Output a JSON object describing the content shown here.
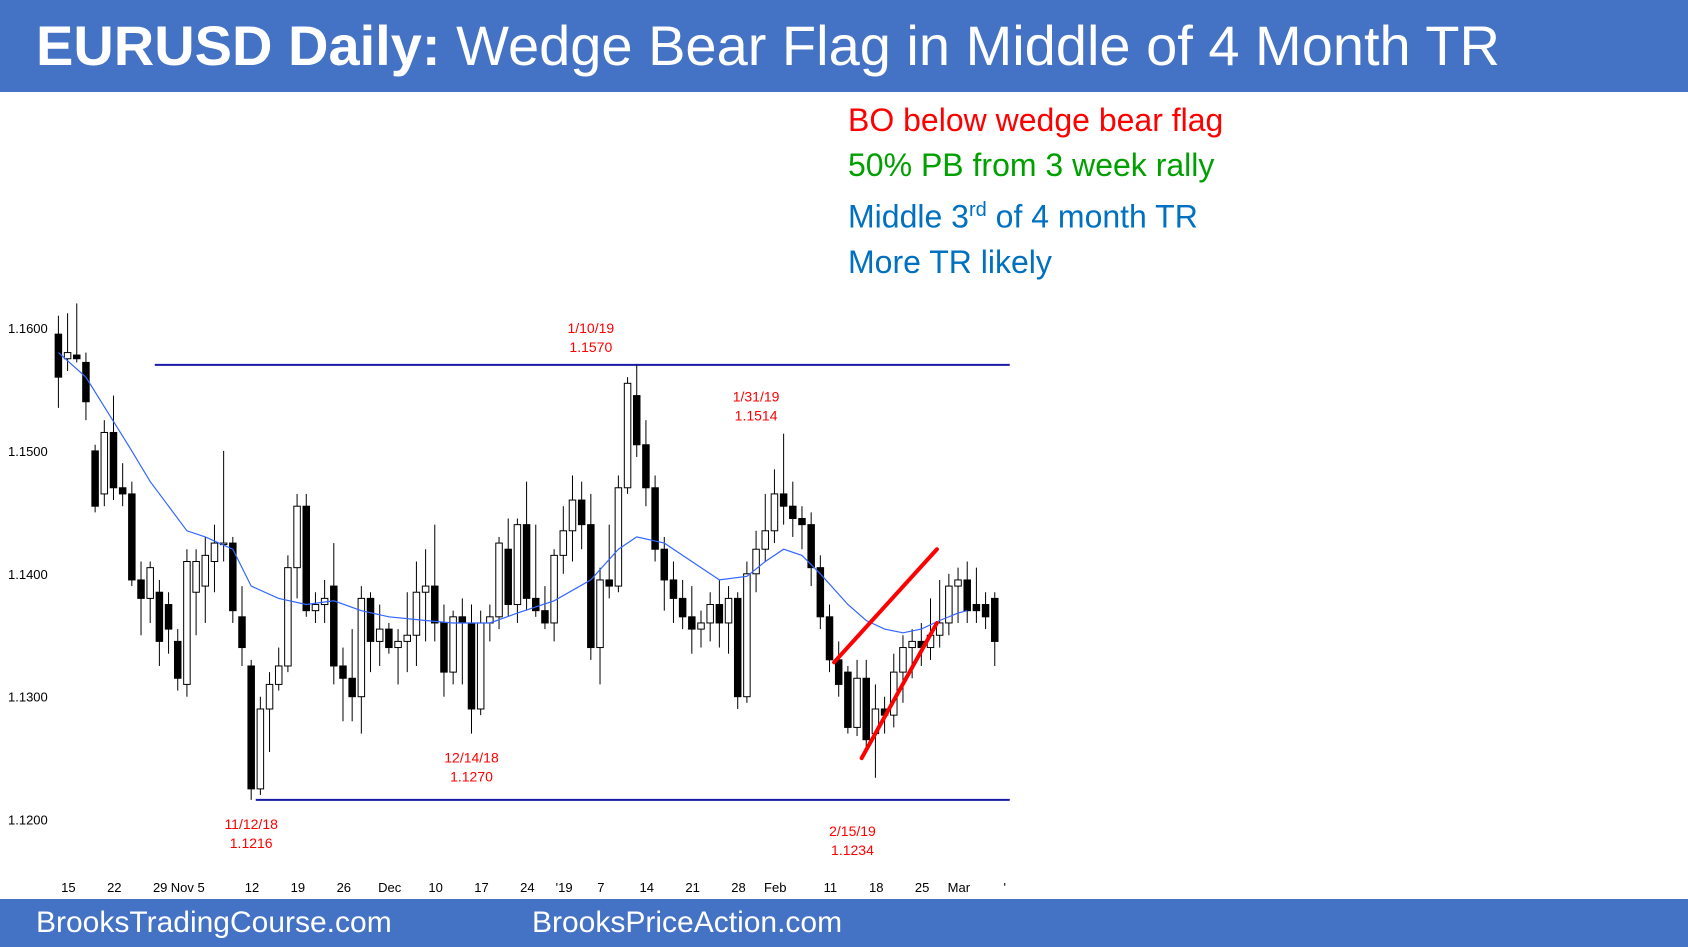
{
  "header": {
    "title_bold": "EURUSD Daily:",
    "title_rest": "Wedge Bear Flag in Middle of 4 Month TR",
    "bg_color": "#4472c4"
  },
  "notes": [
    {
      "text": "BO below wedge bear flag",
      "color": "#ff0000"
    },
    {
      "text": "50% PB from 3 week rally",
      "color": "#00a000"
    },
    {
      "text_before": "Middle 3",
      "sup": "rd",
      "text_after": " of 4 month TR",
      "color": "#0070c0"
    },
    {
      "text": "More TR likely",
      "color": "#0070c0"
    }
  ],
  "footer": {
    "left": "BrooksTradingCourse.com",
    "right": "BrooksPriceAction.com"
  },
  "chart_data": {
    "type": "candlestick",
    "ylim": [
      1.1175,
      1.164
    ],
    "yticks": [
      {
        "value": 1.16,
        "label": "1.1600"
      },
      {
        "value": 1.15,
        "label": "1.1500"
      },
      {
        "value": 1.14,
        "label": "1.1400"
      },
      {
        "value": 1.13,
        "label": "1.1300"
      },
      {
        "value": 1.12,
        "label": "1.1200"
      }
    ],
    "xticks": [
      {
        "i": 0,
        "label": "15"
      },
      {
        "i": 5,
        "label": "22"
      },
      {
        "i": 10,
        "label": "29"
      },
      {
        "i": 13,
        "label": "Nov 5"
      },
      {
        "i": 20,
        "label": "12"
      },
      {
        "i": 25,
        "label": "19"
      },
      {
        "i": 30,
        "label": "26"
      },
      {
        "i": 35,
        "label": "Dec"
      },
      {
        "i": 40,
        "label": "10"
      },
      {
        "i": 45,
        "label": "17"
      },
      {
        "i": 50,
        "label": "24"
      },
      {
        "i": 54,
        "label": "'19"
      },
      {
        "i": 58,
        "label": "7"
      },
      {
        "i": 63,
        "label": "14"
      },
      {
        "i": 68,
        "label": "21"
      },
      {
        "i": 73,
        "label": "28"
      },
      {
        "i": 77,
        "label": "Feb"
      },
      {
        "i": 83,
        "label": "11"
      },
      {
        "i": 88,
        "label": "18"
      },
      {
        "i": 93,
        "label": "25"
      },
      {
        "i": 97,
        "label": "Mar"
      },
      {
        "i": 102,
        "label": "'"
      }
    ],
    "bars": [
      [
        1.1595,
        1.161,
        1.1535,
        1.156
      ],
      [
        1.1575,
        1.1612,
        1.1565,
        1.158
      ],
      [
        1.1578,
        1.162,
        1.1572,
        1.1575
      ],
      [
        1.1572,
        1.158,
        1.1525,
        1.154
      ],
      [
        1.15,
        1.1505,
        1.145,
        1.1455
      ],
      [
        1.1465,
        1.1525,
        1.1455,
        1.1515
      ],
      [
        1.1515,
        1.1545,
        1.146,
        1.147
      ],
      [
        1.147,
        1.149,
        1.1455,
        1.1465
      ],
      [
        1.1465,
        1.1475,
        1.139,
        1.1395
      ],
      [
        1.1395,
        1.141,
        1.135,
        1.138
      ],
      [
        1.138,
        1.141,
        1.136,
        1.1405
      ],
      [
        1.1385,
        1.1395,
        1.1325,
        1.1345
      ],
      [
        1.1375,
        1.1385,
        1.1335,
        1.1355
      ],
      [
        1.1345,
        1.1355,
        1.1305,
        1.1315
      ],
      [
        1.131,
        1.142,
        1.13,
        1.141
      ],
      [
        1.1385,
        1.142,
        1.135,
        1.141
      ],
      [
        1.139,
        1.143,
        1.136,
        1.1415
      ],
      [
        1.141,
        1.144,
        1.1385,
        1.1425
      ],
      [
        1.1425,
        1.15,
        1.141,
        1.1425
      ],
      [
        1.1425,
        1.143,
        1.136,
        1.137
      ],
      [
        1.1365,
        1.139,
        1.1325,
        1.134
      ],
      [
        1.1325,
        1.133,
        1.1216,
        1.1225
      ],
      [
        1.1225,
        1.13,
        1.122,
        1.129
      ],
      [
        1.129,
        1.132,
        1.1255,
        1.131
      ],
      [
        1.131,
        1.134,
        1.1305,
        1.1325
      ],
      [
        1.1325,
        1.1415,
        1.132,
        1.1405
      ],
      [
        1.1405,
        1.1465,
        1.138,
        1.1455
      ],
      [
        1.1455,
        1.1465,
        1.1365,
        1.137
      ],
      [
        1.137,
        1.1385,
        1.136,
        1.1375
      ],
      [
        1.1375,
        1.1395,
        1.136,
        1.138
      ],
      [
        1.139,
        1.1425,
        1.131,
        1.1325
      ],
      [
        1.1325,
        1.134,
        1.128,
        1.1315
      ],
      [
        1.1315,
        1.1355,
        1.128,
        1.13
      ],
      [
        1.13,
        1.139,
        1.127,
        1.138
      ],
      [
        1.138,
        1.1385,
        1.132,
        1.1345
      ],
      [
        1.1345,
        1.1375,
        1.1325,
        1.1355
      ],
      [
        1.1355,
        1.136,
        1.1335,
        1.134
      ],
      [
        1.134,
        1.1355,
        1.131,
        1.1345
      ],
      [
        1.1345,
        1.1385,
        1.132,
        1.135
      ],
      [
        1.135,
        1.141,
        1.1325,
        1.1385
      ],
      [
        1.1385,
        1.142,
        1.1345,
        1.139
      ],
      [
        1.139,
        1.144,
        1.1345,
        1.136
      ],
      [
        1.136,
        1.1375,
        1.13,
        1.132
      ],
      [
        1.132,
        1.137,
        1.131,
        1.1365
      ],
      [
        1.1365,
        1.138,
        1.131,
        1.136
      ],
      [
        1.136,
        1.1375,
        1.127,
        1.129
      ],
      [
        1.129,
        1.137,
        1.1285,
        1.136
      ],
      [
        1.136,
        1.1375,
        1.1345,
        1.1365
      ],
      [
        1.1365,
        1.143,
        1.1355,
        1.1425
      ],
      [
        1.142,
        1.1445,
        1.1365,
        1.1375
      ],
      [
        1.1375,
        1.1445,
        1.136,
        1.144
      ],
      [
        1.144,
        1.1475,
        1.137,
        1.138
      ],
      [
        1.138,
        1.144,
        1.1365,
        1.137
      ],
      [
        1.137,
        1.139,
        1.1355,
        1.136
      ],
      [
        1.136,
        1.142,
        1.1345,
        1.1415
      ],
      [
        1.1415,
        1.1455,
        1.14,
        1.1435
      ],
      [
        1.1435,
        1.148,
        1.141,
        1.146
      ],
      [
        1.146,
        1.1475,
        1.142,
        1.144
      ],
      [
        1.144,
        1.1465,
        1.133,
        1.134
      ],
      [
        1.134,
        1.1405,
        1.131,
        1.1395
      ],
      [
        1.1395,
        1.144,
        1.138,
        1.139
      ],
      [
        1.139,
        1.148,
        1.1385,
        1.147
      ],
      [
        1.147,
        1.156,
        1.1465,
        1.1555
      ],
      [
        1.1545,
        1.157,
        1.1495,
        1.1505
      ],
      [
        1.1505,
        1.1525,
        1.1455,
        1.147
      ],
      [
        1.147,
        1.148,
        1.141,
        1.142
      ],
      [
        1.142,
        1.143,
        1.137,
        1.1395
      ],
      [
        1.1395,
        1.141,
        1.136,
        1.138
      ],
      [
        1.138,
        1.1395,
        1.1355,
        1.1365
      ],
      [
        1.1365,
        1.139,
        1.1335,
        1.1355
      ],
      [
        1.1355,
        1.137,
        1.134,
        1.136
      ],
      [
        1.136,
        1.1385,
        1.1345,
        1.1375
      ],
      [
        1.1375,
        1.1395,
        1.134,
        1.136
      ],
      [
        1.136,
        1.139,
        1.1335,
        1.138
      ],
      [
        1.138,
        1.1385,
        1.129,
        1.13
      ],
      [
        1.13,
        1.141,
        1.1295,
        1.14
      ],
      [
        1.14,
        1.1435,
        1.1385,
        1.142
      ],
      [
        1.142,
        1.1465,
        1.141,
        1.1435
      ],
      [
        1.1435,
        1.1485,
        1.1425,
        1.1465
      ],
      [
        1.1465,
        1.1514,
        1.144,
        1.1455
      ],
      [
        1.1455,
        1.1475,
        1.143,
        1.1445
      ],
      [
        1.1445,
        1.1455,
        1.142,
        1.144
      ],
      [
        1.144,
        1.145,
        1.139,
        1.1405
      ],
      [
        1.1405,
        1.1415,
        1.1355,
        1.1365
      ],
      [
        1.1365,
        1.1375,
        1.132,
        1.133
      ],
      [
        1.133,
        1.1345,
        1.13,
        1.131
      ],
      [
        1.132,
        1.1325,
        1.127,
        1.1275
      ],
      [
        1.1275,
        1.133,
        1.1268,
        1.1315
      ],
      [
        1.1315,
        1.133,
        1.1255,
        1.1265
      ],
      [
        1.127,
        1.131,
        1.1234,
        1.129
      ],
      [
        1.129,
        1.13,
        1.127,
        1.1285
      ],
      [
        1.1285,
        1.1335,
        1.1275,
        1.132
      ],
      [
        1.132,
        1.135,
        1.1295,
        1.134
      ],
      [
        1.134,
        1.1355,
        1.1315,
        1.1345
      ],
      [
        1.1345,
        1.136,
        1.1325,
        1.134
      ],
      [
        1.134,
        1.138,
        1.133,
        1.135
      ],
      [
        1.135,
        1.1395,
        1.134,
        1.136
      ],
      [
        1.136,
        1.14,
        1.135,
        1.139
      ],
      [
        1.139,
        1.1405,
        1.136,
        1.1395
      ],
      [
        1.1395,
        1.141,
        1.136,
        1.137
      ],
      [
        1.1375,
        1.1405,
        1.136,
        1.137
      ],
      [
        1.1375,
        1.1385,
        1.1355,
        1.1365
      ],
      [
        1.138,
        1.1385,
        1.1325,
        1.1345
      ]
    ],
    "ma20": [
      [
        0,
        1.158
      ],
      [
        3,
        1.156
      ],
      [
        8,
        1.15
      ],
      [
        10,
        1.1475
      ],
      [
        12,
        1.1455
      ],
      [
        14,
        1.1435
      ],
      [
        16,
        1.143
      ],
      [
        19,
        1.142
      ],
      [
        21,
        1.139
      ],
      [
        24,
        1.138
      ],
      [
        27,
        1.1375
      ],
      [
        30,
        1.1378
      ],
      [
        33,
        1.137
      ],
      [
        36,
        1.1365
      ],
      [
        40,
        1.1362
      ],
      [
        43,
        1.136
      ],
      [
        47,
        1.136
      ],
      [
        50,
        1.1368
      ],
      [
        54,
        1.1378
      ],
      [
        58,
        1.1395
      ],
      [
        61,
        1.142
      ],
      [
        63,
        1.143
      ],
      [
        66,
        1.1425
      ],
      [
        69,
        1.141
      ],
      [
        72,
        1.1395
      ],
      [
        75,
        1.1398
      ],
      [
        77,
        1.141
      ],
      [
        79,
        1.142
      ],
      [
        81,
        1.1415
      ],
      [
        83,
        1.14
      ],
      [
        86,
        1.1375
      ],
      [
        88,
        1.1362
      ],
      [
        90,
        1.1355
      ],
      [
        92,
        1.1352
      ],
      [
        94,
        1.1355
      ],
      [
        96,
        1.1362
      ],
      [
        98,
        1.1368
      ],
      [
        99,
        1.137
      ]
    ],
    "ma_color": "#3366ff",
    "hlines": [
      {
        "value": 1.157,
        "from_i": 10.5,
        "to_i": 102,
        "color": "#1a1aa6"
      },
      {
        "value": 1.1216,
        "from_i": 21.5,
        "to_i": 102,
        "color": "#1a1aa6"
      }
    ],
    "wedge": {
      "color": "#ff0000",
      "upper": [
        [
          84.5,
          1.1328
        ],
        [
          95.7,
          1.142
        ]
      ],
      "lower": [
        [
          87.5,
          1.125
        ],
        [
          95.7,
          1.136
        ]
      ]
    },
    "annotations": [
      {
        "i": 58,
        "value": 1.157,
        "lines": [
          "1/10/19",
          "1.1570"
        ],
        "pos": "above",
        "color": "#ff0000"
      },
      {
        "i": 76,
        "value": 1.1514,
        "lines": [
          "1/31/19",
          "1.1514"
        ],
        "pos": "above",
        "color": "#ff0000"
      },
      {
        "i": 45,
        "value": 1.127,
        "lines": [
          "12/14/18",
          "1.1270"
        ],
        "pos": "below",
        "color": "#ff0000"
      },
      {
        "i": 21,
        "value": 1.1216,
        "lines": [
          "11/12/18",
          "1.1216"
        ],
        "pos": "below",
        "color": "#ff0000"
      },
      {
        "i": 86.5,
        "value": 1.1234,
        "lines": [
          "2/15/19",
          "1.1234"
        ],
        "pos": "below_far",
        "color": "#ff0000"
      }
    ]
  }
}
